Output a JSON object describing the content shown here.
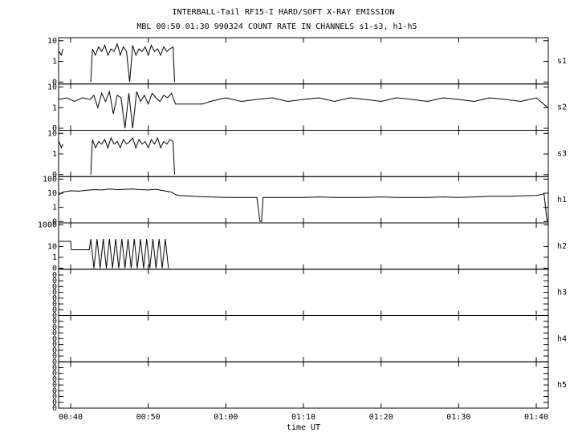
{
  "title": "INTERBALL-Tail RF15-I HARD/SOFT X-RAY EMISSION",
  "subtitle": "MBL 00:50 01:30 990324  COUNT RATE IN CHANNELS s1-s3, h1-h5",
  "xlabel": "time UT",
  "xlim": [
    38.45,
    101.55
  ],
  "xticks": [
    {
      "value": 40,
      "label": "00:40"
    },
    {
      "value": 50,
      "label": "00:50"
    },
    {
      "value": 60,
      "label": "01:00"
    },
    {
      "value": 70,
      "label": "01:10"
    },
    {
      "value": 80,
      "label": "01:20"
    },
    {
      "value": 90,
      "label": "01:30"
    },
    {
      "value": 100,
      "label": "01:40"
    }
  ],
  "chart_data": [
    {
      "type": "line",
      "label": "s1",
      "log": true,
      "color": "#000000",
      "ylim": [
        0.08,
        14
      ],
      "yticks": [
        10,
        1,
        {
          "value": 0.1,
          "label": "0"
        }
      ],
      "x": [
        38.5,
        38.8,
        39.0,
        39.1,
        42.6,
        42.8,
        43.2,
        43.6,
        44.0,
        44.4,
        44.8,
        45.2,
        45.6,
        46.0,
        46.4,
        46.8,
        47.2,
        47.6,
        48.0,
        48.4,
        48.8,
        49.2,
        49.6,
        50.0,
        50.4,
        50.8,
        51.2,
        51.6,
        52.0,
        52.4,
        52.8,
        53.2,
        53.4
      ],
      "values": [
        3,
        2,
        4,
        null,
        0.1,
        4,
        2,
        5,
        3,
        6,
        2,
        4,
        3,
        7,
        2,
        5,
        3,
        0.1,
        6,
        2,
        4,
        3,
        5,
        2,
        6,
        3,
        4,
        2,
        5,
        3,
        4,
        5,
        0.1
      ]
    },
    {
      "type": "line",
      "label": "s2",
      "log": true,
      "color": "#000000",
      "ylim": [
        0.08,
        14
      ],
      "yticks": [
        10,
        1,
        {
          "value": 0.1,
          "label": "0"
        }
      ],
      "x": [
        38.5,
        39.5,
        40.5,
        41.5,
        42.5,
        43.0,
        43.5,
        44.0,
        44.5,
        45.0,
        45.5,
        46.0,
        46.5,
        47.0,
        47.5,
        48.0,
        48.5,
        49.0,
        49.5,
        50.0,
        50.5,
        51.0,
        51.5,
        52.0,
        52.5,
        53.0,
        53.5,
        55,
        57,
        58,
        60,
        62,
        64,
        66,
        68,
        70,
        72,
        74,
        76,
        78,
        80,
        82,
        84,
        86,
        88,
        90,
        92,
        94,
        96,
        98,
        100,
        101.5
      ],
      "values": [
        2.5,
        3,
        2,
        3,
        2.5,
        4,
        1,
        5,
        2,
        6,
        0.5,
        4,
        3,
        0.1,
        5,
        0.1,
        6,
        2,
        4,
        1.5,
        5,
        3,
        2,
        4,
        3,
        5,
        1.5,
        1.5,
        1.5,
        2,
        3,
        2,
        2.5,
        3,
        2,
        2.5,
        3,
        2,
        3,
        2.5,
        2,
        3,
        2.5,
        2,
        3,
        2.5,
        2,
        3,
        2.5,
        2,
        3,
        1
      ]
    },
    {
      "type": "line",
      "label": "s3",
      "log": true,
      "color": "#000000",
      "ylim": [
        0.08,
        14
      ],
      "yticks": [
        10,
        1,
        {
          "value": 0.1,
          "label": "0"
        }
      ],
      "x": [
        38.5,
        38.8,
        39.0,
        39.1,
        42.6,
        42.8,
        43.2,
        43.6,
        44.0,
        44.4,
        44.8,
        45.2,
        45.6,
        46.0,
        46.4,
        46.8,
        47.2,
        47.6,
        48.0,
        48.4,
        48.8,
        49.2,
        49.6,
        50.0,
        50.4,
        50.8,
        51.2,
        51.6,
        52.0,
        52.4,
        52.8,
        53.2,
        53.4
      ],
      "values": [
        4,
        2,
        3,
        null,
        0.1,
        5,
        2,
        4,
        3,
        5,
        2,
        6,
        3,
        4,
        2,
        5,
        3,
        4,
        6,
        2,
        5,
        3,
        4,
        2,
        5,
        3,
        6,
        2,
        4,
        3,
        5,
        4,
        0.1
      ]
    },
    {
      "type": "line",
      "label": "h1",
      "log": true,
      "color": "#000000",
      "ylim": [
        0.08,
        150
      ],
      "yticks": [
        100,
        10,
        1,
        {
          "value": 0.1,
          "label": "0"
        }
      ],
      "x": [
        38.5,
        39,
        40,
        41,
        42,
        43,
        44,
        45,
        46,
        47,
        48,
        49,
        50,
        51,
        52,
        53,
        53.5,
        54,
        56,
        58,
        60,
        62,
        64,
        64.4,
        64.6,
        64.8,
        66,
        68,
        70,
        72,
        74,
        76,
        78,
        80,
        82,
        84,
        86,
        88,
        90,
        92,
        94,
        96,
        98,
        100,
        101,
        101.4
      ],
      "values": [
        8,
        12,
        15,
        14,
        16,
        18,
        17,
        20,
        18,
        19,
        20,
        18,
        17,
        19,
        15,
        12,
        8,
        7,
        6,
        5.5,
        5,
        5,
        5,
        0.1,
        0.1,
        5,
        5,
        5,
        5,
        5.5,
        5,
        5,
        5,
        5.5,
        5,
        5,
        5,
        5.5,
        5,
        5.5,
        6,
        6,
        6.5,
        7,
        9,
        0.1
      ]
    },
    {
      "type": "line",
      "label": "h2",
      "log": true,
      "color": "#000000",
      "ylim": [
        0.08,
        1500
      ],
      "yticks": [
        1000,
        10,
        1,
        {
          "value": 0.1,
          "label": "0"
        }
      ],
      "x": [
        38.5,
        40.0,
        40.1,
        42.4,
        42.6,
        43.0,
        43.4,
        43.8,
        44.2,
        44.6,
        45.0,
        45.4,
        45.8,
        46.2,
        46.6,
        47.0,
        47.4,
        47.8,
        48.2,
        48.6,
        49.0,
        49.4,
        49.8,
        50.2,
        50.6,
        51.0,
        51.4,
        51.8,
        52.2,
        52.6,
        53.0
      ],
      "values": [
        30,
        30,
        5,
        5,
        50,
        0.1,
        50,
        0.1,
        50,
        0.1,
        50,
        0.1,
        50,
        0.1,
        50,
        0.1,
        50,
        0.1,
        50,
        0.1,
        50,
        0.1,
        50,
        0.1,
        50,
        0.1,
        50,
        0.1,
        50,
        0.1,
        null
      ]
    },
    {
      "type": "line",
      "label": "h3",
      "log": false,
      "color": "#000000",
      "ylim": [
        0,
        1
      ],
      "yticks": [
        {
          "value": 0,
          "label": "0"
        },
        {
          "value": 0.125,
          "label": "0"
        },
        {
          "value": 0.25,
          "label": "0"
        },
        {
          "value": 0.375,
          "label": "0"
        },
        {
          "value": 0.5,
          "label": "0"
        },
        {
          "value": 0.625,
          "label": "0"
        },
        {
          "value": 0.75,
          "label": "0"
        },
        {
          "value": 0.875,
          "label": "0"
        }
      ],
      "x": [],
      "values": []
    },
    {
      "type": "line",
      "label": "h4",
      "log": false,
      "color": "#000000",
      "ylim": [
        0,
        1
      ],
      "yticks": [
        {
          "value": 0,
          "label": "0"
        },
        {
          "value": 0.125,
          "label": "0"
        },
        {
          "value": 0.25,
          "label": "0"
        },
        {
          "value": 0.375,
          "label": "0"
        },
        {
          "value": 0.5,
          "label": "0"
        },
        {
          "value": 0.625,
          "label": "0"
        },
        {
          "value": 0.75,
          "label": "0"
        },
        {
          "value": 0.875,
          "label": "0"
        }
      ],
      "x": [],
      "values": []
    },
    {
      "type": "line",
      "label": "h5",
      "log": false,
      "color": "#000000",
      "ylim": [
        0,
        1
      ],
      "yticks": [
        {
          "value": 0,
          "label": "0"
        },
        {
          "value": 0.125,
          "label": "0"
        },
        {
          "value": 0.25,
          "label": "0"
        },
        {
          "value": 0.375,
          "label": "0"
        },
        {
          "value": 0.5,
          "label": "0"
        },
        {
          "value": 0.625,
          "label": "0"
        },
        {
          "value": 0.75,
          "label": "0"
        },
        {
          "value": 0.875,
          "label": "0"
        }
      ],
      "x": [],
      "values": []
    }
  ]
}
